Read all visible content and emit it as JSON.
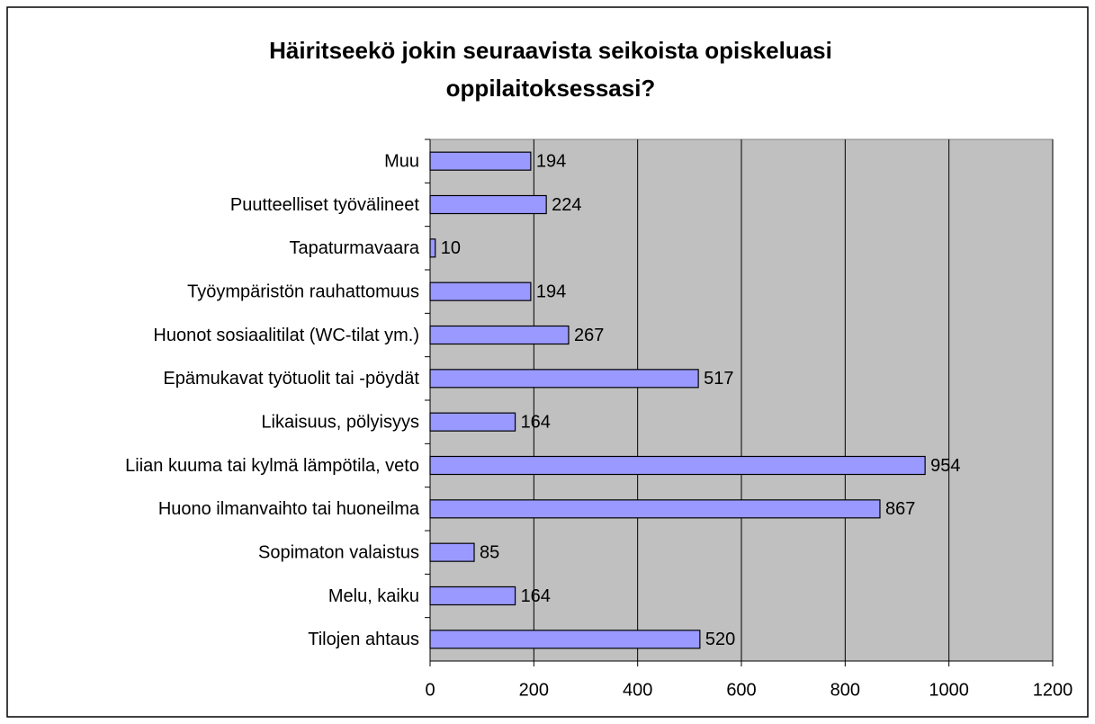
{
  "chart_data": {
    "type": "barh",
    "title": [
      "Häiritseekö jokin seuraavista seikoista opiskeluasi",
      "oppilaitoksessasi?"
    ],
    "categories": [
      "Muu",
      "Puutteelliset työvälineet",
      "Tapaturmavaara",
      "Työympäristön rauhattomuus",
      "Huonot sosiaalitilat (WC-tilat ym.)",
      "Epämukavat työtuolit tai -pöydät",
      "Likaisuus, pölyisyys",
      "Liian kuuma tai kylmä lämpötila, veto",
      "Huono ilmanvaihto tai huoneilma",
      "Sopimaton valaistus",
      "Melu, kaiku",
      "Tilojen ahtaus"
    ],
    "values": [
      194,
      224,
      10,
      194,
      267,
      517,
      164,
      954,
      867,
      85,
      164,
      520
    ],
    "color": "#9999ff",
    "xlim": [
      0,
      1200
    ],
    "xticks": [
      0,
      200,
      400,
      600,
      800,
      1000,
      1200
    ],
    "grid": true,
    "plot_background": "#c0c0c0"
  }
}
